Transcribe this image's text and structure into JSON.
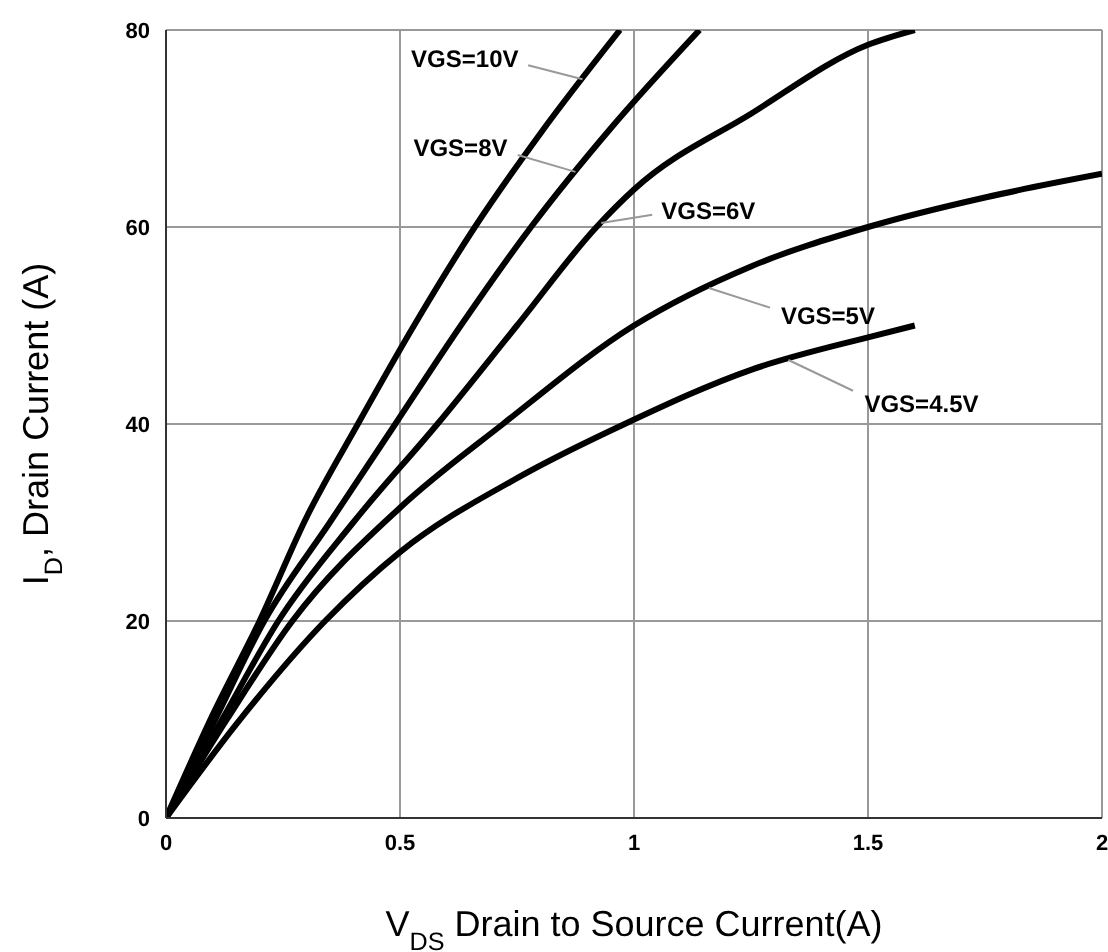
{
  "chart_data": {
    "type": "line",
    "xlabel": "V$_{DS}$ Drain to Source Current(A)",
    "ylabel": "I$_{D}$, Drain Current (A)",
    "xlim": [
      0,
      2
    ],
    "xticks": [
      0,
      0.5,
      1,
      1.5,
      2
    ],
    "ylim": [
      0,
      80
    ],
    "yticks": [
      0,
      20,
      40,
      60,
      80
    ],
    "grid": true,
    "marker": "none",
    "line_style": "solid",
    "series": [
      {
        "color": "#000000",
        "x": [
          0,
          0.1,
          0.2,
          0.3,
          0.41,
          0.53,
          0.66,
          0.8,
          0.97
        ],
        "values": [
          0,
          10.5,
          20,
          30.5,
          40,
          50,
          60,
          69.5,
          80
        ]
      },
      {
        "color": "#000000",
        "x": [
          0,
          0.1,
          0.21,
          0.35,
          0.49,
          0.63,
          0.78,
          0.95,
          1.14
        ],
        "values": [
          0,
          9.5,
          20,
          30,
          40,
          50,
          60,
          70,
          80
        ]
      },
      {
        "color": "#000000",
        "x": [
          0,
          0.12,
          0.24,
          0.4,
          0.58,
          0.75,
          0.92,
          1,
          1.25,
          1.5,
          1.6
        ],
        "values": [
          0,
          10,
          20,
          30,
          40,
          50,
          60,
          63.8,
          71.5,
          78.5,
          80
        ]
      },
      {
        "color": "#000000",
        "x": [
          0,
          0.13,
          0.27,
          0.5,
          0.72,
          1,
          1.25,
          1.5,
          1.75,
          2
        ],
        "values": [
          0,
          10,
          20,
          31.5,
          40,
          50,
          56,
          60,
          63,
          65.4
        ]
      },
      {
        "color": "#000000",
        "x": [
          0,
          0.15,
          0.34,
          0.5,
          0.75,
          0.98,
          1.25,
          1.5,
          1.6
        ],
        "values": [
          0,
          9.5,
          20,
          27,
          34.5,
          40,
          45.5,
          48.8,
          50
        ]
      }
    ],
    "annotations": [
      {
        "text": "VGS=10V",
        "x": 0.89,
        "y": 75
      },
      {
        "text": "VGS=8V",
        "x": 0.875,
        "y": 65.6
      },
      {
        "text": "VGS=6V",
        "x": 0.93,
        "y": 60.4
      },
      {
        "text": "VGS=5V",
        "x": 1.16,
        "y": 53.8
      },
      {
        "text": "VGS=4.5V",
        "x": 1.33,
        "y": 46.5
      }
    ]
  }
}
